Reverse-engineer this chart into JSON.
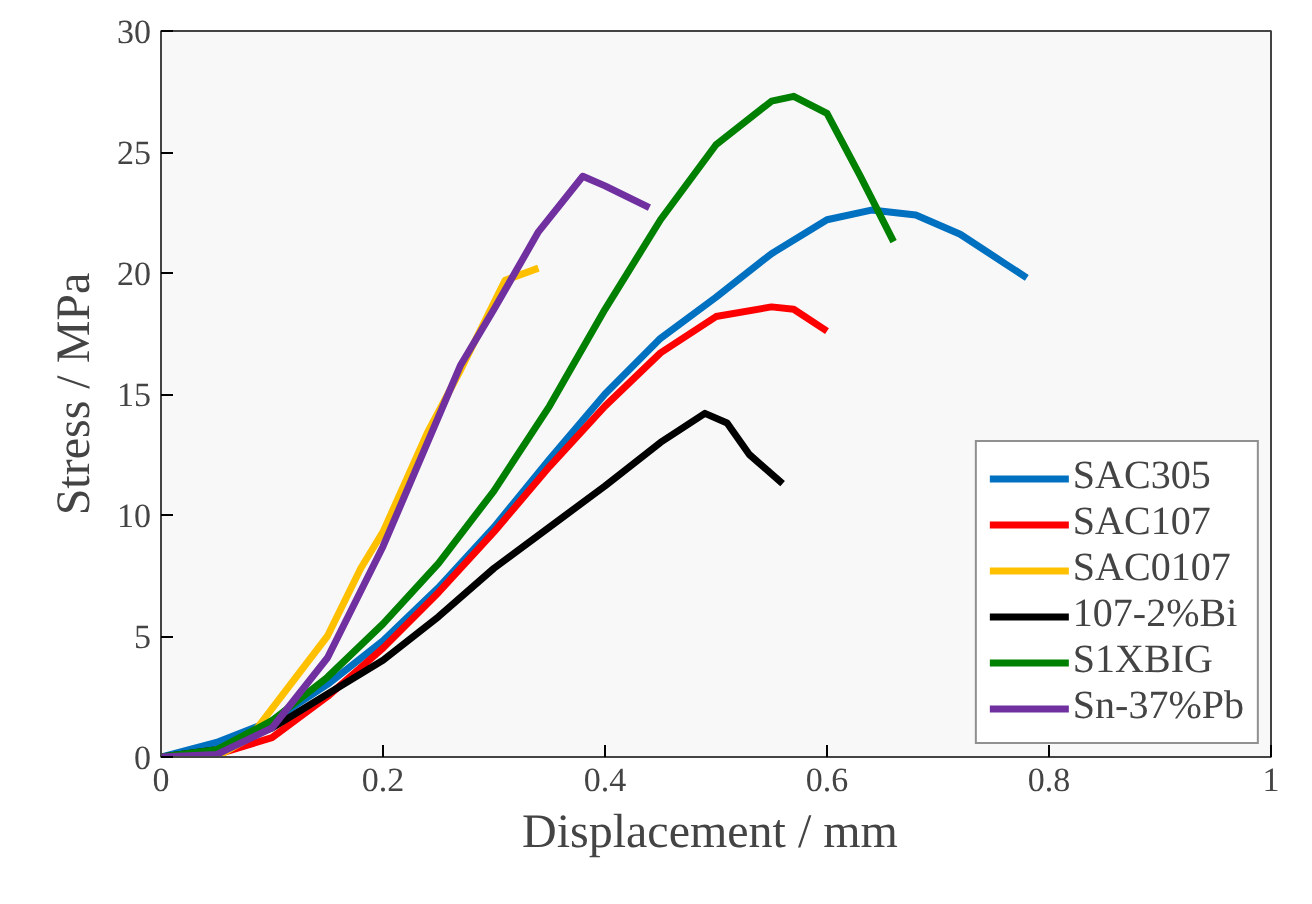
{
  "chart_data": {
    "type": "line",
    "xlabel": "Displacement  / mm",
    "ylabel": "Stress / MPa",
    "xlim": [
      0,
      1
    ],
    "xticks": [
      0,
      0.2,
      0.4,
      0.6,
      0.8,
      1
    ],
    "ylim": [
      0,
      30
    ],
    "yticks": [
      0,
      5,
      10,
      15,
      20,
      25,
      30
    ],
    "grid": false,
    "legend": "bottom right",
    "marker": "none",
    "line_style": "solid",
    "series": [
      {
        "name": "SAC305",
        "color": "#0070c0",
        "x": [
          0,
          0.05,
          0.1,
          0.15,
          0.2,
          0.25,
          0.3,
          0.35,
          0.4,
          0.45,
          0.5,
          0.55,
          0.6,
          0.64,
          0.68,
          0.72,
          0.76,
          0.78
        ],
        "values": [
          0,
          0.6,
          1.5,
          3,
          4.8,
          7,
          9.5,
          12.3,
          15,
          17.3,
          19,
          20.8,
          22.2,
          22.6,
          22.4,
          21.6,
          20.4,
          19.8
        ]
      },
      {
        "name": "SAC107",
        "color": "#ff0000",
        "x": [
          0,
          0.05,
          0.1,
          0.15,
          0.2,
          0.25,
          0.3,
          0.35,
          0.4,
          0.45,
          0.5,
          0.55,
          0.57,
          0.6
        ],
        "values": [
          0,
          0.1,
          0.8,
          2.5,
          4.5,
          6.8,
          9.3,
          12,
          14.5,
          16.7,
          18.2,
          18.6,
          18.5,
          17.6
        ]
      },
      {
        "name": "SAC0107",
        "color": "#ffc000",
        "x": [
          0,
          0.05,
          0.08,
          0.1,
          0.15,
          0.18,
          0.2,
          0.24,
          0.27,
          0.31,
          0.34
        ],
        "values": [
          0,
          0,
          0.8,
          2,
          5,
          7.8,
          9.3,
          13.4,
          16,
          19.7,
          20.2
        ]
      },
      {
        "name": "107-2%Bi",
        "color": "#000000",
        "x": [
          0,
          0.05,
          0.1,
          0.15,
          0.2,
          0.25,
          0.3,
          0.35,
          0.4,
          0.45,
          0.49,
          0.51,
          0.53,
          0.56
        ],
        "values": [
          0,
          0.3,
          1.2,
          2.6,
          4,
          5.8,
          7.8,
          9.5,
          11.2,
          13,
          14.2,
          13.8,
          12.5,
          11.3
        ]
      },
      {
        "name": "S1XBIG",
        "color": "#008000",
        "x": [
          0,
          0.05,
          0.1,
          0.15,
          0.2,
          0.25,
          0.3,
          0.35,
          0.4,
          0.45,
          0.5,
          0.55,
          0.57,
          0.6,
          0.63,
          0.66
        ],
        "values": [
          0,
          0.3,
          1.5,
          3.3,
          5.5,
          8,
          11,
          14.5,
          18.5,
          22.2,
          25.3,
          27.1,
          27.3,
          26.6,
          24,
          21.3
        ]
      },
      {
        "name": "Sn-37%Pb",
        "color": "#7030a0",
        "x": [
          0,
          0.05,
          0.1,
          0.15,
          0.2,
          0.27,
          0.3,
          0.34,
          0.38,
          0.4,
          0.44
        ],
        "values": [
          0,
          0.1,
          1.2,
          4.1,
          8.7,
          16.2,
          18.5,
          21.7,
          24,
          23.6,
          22.7
        ]
      }
    ]
  }
}
